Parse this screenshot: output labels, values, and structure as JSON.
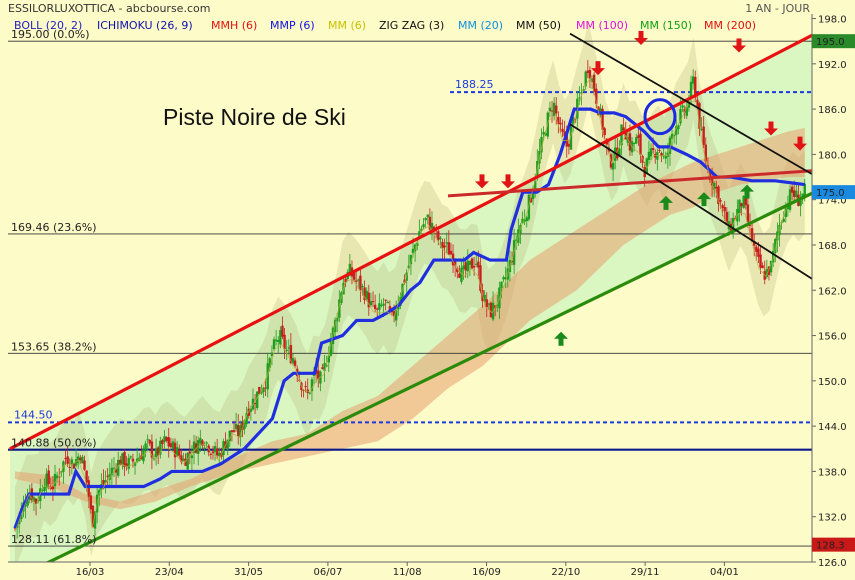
{
  "header": {
    "title": "ESSILORLUXOTTICA - abcbourse.com",
    "period": "1 AN - JOUR"
  },
  "colors": {
    "background": "#fdfbc8",
    "up_candle": "#1e9e1e",
    "down_candle": "#c81e1e",
    "channel_fill": "#d6f5c0",
    "cloud_fill": "#e8a070",
    "boll_fill": "#b4b478",
    "ichimoku_line": "#1f2fe0",
    "resistance": "#e81010",
    "support": "#2a8a0a"
  },
  "chart_data": {
    "type": "candlestick",
    "title": "Piste Noire de Ski",
    "indicators": [
      {
        "name": "BOLL (20, 2)",
        "color": "#2020c0"
      },
      {
        "name": "ICHIMOKU (26, 9)",
        "color": "#1010b0"
      },
      {
        "name": "MMH (6)",
        "color": "#e01010"
      },
      {
        "name": "MMP (6)",
        "color": "#1010e0"
      },
      {
        "name": "MM (6)",
        "color": "#c8c000"
      },
      {
        "name": "ZIG ZAG (3)",
        "color": "#111111"
      },
      {
        "name": "MM (20)",
        "color": "#1090e0"
      },
      {
        "name": "MM (50)",
        "color": "#111111"
      },
      {
        "name": "MM (100)",
        "color": "#e010e0"
      },
      {
        "name": "MM (150)",
        "color": "#10a010"
      },
      {
        "name": "MM (200)",
        "color": "#e01010"
      }
    ],
    "x_labels": [
      "16/03",
      "23/04",
      "31/05",
      "06/07",
      "11/08",
      "16/09",
      "22/10",
      "29/11",
      "04/01"
    ],
    "y_ticks": [
      "198.0",
      "192.0",
      "186.0",
      "180.0",
      "174.0",
      "168.0",
      "162.0",
      "156.0",
      "150.0",
      "144.0",
      "138.0",
      "132.0",
      "126.0"
    ],
    "ylim": [
      126,
      198.6
    ],
    "last_price": "175.0",
    "high_marker": "195.0",
    "low_marker": "128.3",
    "fib_levels": [
      {
        "label": "195.00  (0.0%)",
        "value": 195.0
      },
      {
        "label": "169.46  (23.6%)",
        "value": 169.46
      },
      {
        "label": "153.65  (38.2%)",
        "value": 153.65
      },
      {
        "label": "140.88  (50.0%)",
        "value": 140.88
      },
      {
        "label": "128.11  (61.8%)",
        "value": 128.11
      }
    ],
    "dashed_levels": [
      {
        "label": "188.25",
        "value": 188.25
      },
      {
        "label": "144.50",
        "value": 144.5
      }
    ],
    "close_path": [
      [
        0,
        130.5
      ],
      [
        6,
        133
      ],
      [
        12,
        135.5
      ],
      [
        18,
        134
      ],
      [
        25,
        137
      ],
      [
        32,
        136
      ],
      [
        38,
        138
      ],
      [
        44,
        140
      ],
      [
        50,
        139
      ],
      [
        56,
        140.5
      ],
      [
        62,
        136
      ],
      [
        66,
        131
      ],
      [
        70,
        135
      ],
      [
        76,
        136.5
      ],
      [
        82,
        138
      ],
      [
        90,
        139.5
      ],
      [
        98,
        139
      ],
      [
        106,
        140
      ],
      [
        113,
        141.5
      ],
      [
        120,
        140
      ],
      [
        128,
        142
      ],
      [
        136,
        141
      ],
      [
        144,
        139.5
      ],
      [
        152,
        141
      ],
      [
        160,
        142.5
      ],
      [
        168,
        141
      ],
      [
        174,
        140
      ],
      [
        180,
        142
      ],
      [
        186,
        143.5
      ],
      [
        192,
        143
      ],
      [
        198,
        146
      ],
      [
        206,
        148
      ],
      [
        214,
        150
      ],
      [
        220,
        154
      ],
      [
        226,
        156
      ],
      [
        232,
        154
      ],
      [
        238,
        153
      ],
      [
        244,
        150
      ],
      [
        250,
        148
      ],
      [
        256,
        151
      ],
      [
        262,
        150
      ],
      [
        268,
        154
      ],
      [
        274,
        158
      ],
      [
        280,
        163
      ],
      [
        286,
        164.5
      ],
      [
        292,
        163
      ],
      [
        298,
        162
      ],
      [
        304,
        160
      ],
      [
        310,
        159
      ],
      [
        316,
        160.5
      ],
      [
        322,
        158
      ],
      [
        328,
        161
      ],
      [
        334,
        164
      ],
      [
        340,
        167
      ],
      [
        346,
        170
      ],
      [
        352,
        171.5
      ],
      [
        358,
        170
      ],
      [
        364,
        168
      ],
      [
        370,
        167.5
      ],
      [
        376,
        166
      ],
      [
        382,
        164
      ],
      [
        388,
        165
      ],
      [
        394,
        166
      ],
      [
        400,
        161
      ],
      [
        406,
        159
      ],
      [
        412,
        160.5
      ],
      [
        418,
        163
      ],
      [
        424,
        166
      ],
      [
        430,
        170
      ],
      [
        436,
        172
      ],
      [
        442,
        175
      ],
      [
        448,
        180
      ],
      [
        454,
        184
      ],
      [
        460,
        187
      ],
      [
        466,
        183
      ],
      [
        472,
        181
      ],
      [
        478,
        185
      ],
      [
        484,
        188
      ],
      [
        490,
        192
      ],
      [
        496,
        188
      ],
      [
        502,
        184
      ],
      [
        508,
        179
      ],
      [
        514,
        180
      ],
      [
        520,
        184
      ],
      [
        526,
        181
      ],
      [
        532,
        182
      ],
      [
        538,
        178
      ],
      [
        544,
        180
      ],
      [
        550,
        181
      ],
      [
        556,
        179
      ],
      [
        562,
        183
      ],
      [
        568,
        185
      ],
      [
        574,
        186
      ],
      [
        580,
        190
      ],
      [
        586,
        183
      ],
      [
        592,
        178
      ],
      [
        598,
        176
      ],
      [
        604,
        173
      ],
      [
        610,
        170
      ],
      [
        616,
        172
      ],
      [
        622,
        174
      ],
      [
        628,
        170
      ],
      [
        634,
        166
      ],
      [
        640,
        164
      ],
      [
        646,
        165
      ],
      [
        652,
        170
      ],
      [
        658,
        173
      ],
      [
        664,
        175
      ],
      [
        670,
        174
      ],
      [
        675,
        175
      ]
    ],
    "ichimoku_kijun": [
      [
        0,
        130.5
      ],
      [
        6,
        133
      ],
      [
        12,
        135
      ],
      [
        46,
        135
      ],
      [
        52,
        138
      ],
      [
        60,
        136
      ],
      [
        110,
        136
      ],
      [
        124,
        137
      ],
      [
        134,
        138
      ],
      [
        160,
        138
      ],
      [
        176,
        139
      ],
      [
        196,
        141
      ],
      [
        208,
        143
      ],
      [
        220,
        145
      ],
      [
        230,
        150
      ],
      [
        238,
        151
      ],
      [
        256,
        151
      ],
      [
        262,
        155
      ],
      [
        280,
        156
      ],
      [
        292,
        158
      ],
      [
        306,
        158
      ],
      [
        318,
        159
      ],
      [
        328,
        160
      ],
      [
        338,
        162
      ],
      [
        346,
        163
      ],
      [
        358,
        166
      ],
      [
        384,
        166
      ],
      [
        392,
        167
      ],
      [
        406,
        166
      ],
      [
        420,
        166
      ],
      [
        424,
        170
      ],
      [
        434,
        175
      ],
      [
        446,
        175
      ],
      [
        456,
        176
      ],
      [
        466,
        180
      ],
      [
        472,
        183
      ],
      [
        478,
        186
      ],
      [
        484,
        186
      ],
      [
        492,
        186
      ],
      [
        500,
        185.5
      ],
      [
        512,
        185.5
      ],
      [
        522,
        185
      ],
      [
        538,
        183
      ],
      [
        550,
        181
      ],
      [
        560,
        181
      ],
      [
        574,
        180
      ],
      [
        586,
        179
      ],
      [
        600,
        177
      ],
      [
        612,
        177
      ],
      [
        630,
        176.5
      ],
      [
        650,
        176.5
      ],
      [
        675,
        176
      ]
    ],
    "cloud_upper": [
      [
        0,
        138
      ],
      [
        30,
        137.5
      ],
      [
        60,
        135
      ],
      [
        90,
        134
      ],
      [
        120,
        135.5
      ],
      [
        150,
        137
      ],
      [
        190,
        140
      ],
      [
        220,
        142
      ],
      [
        250,
        143
      ],
      [
        280,
        146
      ],
      [
        310,
        148
      ],
      [
        340,
        152
      ],
      [
        370,
        156
      ],
      [
        400,
        160
      ],
      [
        420,
        163
      ],
      [
        440,
        166
      ],
      [
        460,
        168
      ],
      [
        480,
        170
      ],
      [
        500,
        172
      ],
      [
        520,
        174
      ],
      [
        540,
        176
      ],
      [
        560,
        177.5
      ],
      [
        580,
        179
      ],
      [
        600,
        180
      ],
      [
        620,
        181
      ],
      [
        640,
        182
      ],
      [
        660,
        183
      ],
      [
        675,
        183.5
      ]
    ],
    "cloud_lower": [
      [
        0,
        137
      ],
      [
        30,
        136
      ],
      [
        60,
        134
      ],
      [
        90,
        133
      ],
      [
        120,
        134
      ],
      [
        150,
        136
      ],
      [
        190,
        138
      ],
      [
        220,
        139
      ],
      [
        250,
        140
      ],
      [
        280,
        141
      ],
      [
        310,
        142
      ],
      [
        340,
        145
      ],
      [
        370,
        149
      ],
      [
        400,
        152
      ],
      [
        420,
        155
      ],
      [
        440,
        158
      ],
      [
        460,
        160
      ],
      [
        480,
        162
      ],
      [
        500,
        165
      ],
      [
        520,
        168
      ],
      [
        540,
        170
      ],
      [
        560,
        172
      ],
      [
        580,
        173
      ],
      [
        600,
        175
      ],
      [
        620,
        176
      ],
      [
        640,
        176.5
      ],
      [
        660,
        177
      ],
      [
        675,
        177
      ]
    ],
    "lines": {
      "resistance": [
        [
          0,
          141
        ],
        [
          820,
          197
        ]
      ],
      "support": [
        [
          0,
          123.5
        ],
        [
          820,
          176
        ]
      ],
      "horizontal_resistance": [
        [
          438,
          174.5
        ],
        [
          820,
          178
        ]
      ],
      "channel_upper": [
        [
          560,
          196
        ],
        [
          820,
          176
        ]
      ],
      "channel_lower": [
        [
          560,
          184
        ],
        [
          820,
          162
        ]
      ],
      "mm6_overlay": [
        [
          0,
          137
        ],
        [
          675,
          176
        ]
      ]
    },
    "arrows_down": [
      [
        472,
        175.5
      ],
      [
        498,
        175.5
      ],
      [
        588,
        190.5
      ],
      [
        631,
        194.5
      ],
      [
        729,
        193.5
      ],
      [
        761,
        182.5
      ],
      [
        790,
        180.5
      ]
    ],
    "arrows_up": [
      [
        551,
        156.5
      ],
      [
        656,
        174.5
      ],
      [
        694,
        175
      ],
      [
        737,
        176
      ]
    ],
    "circle_marker": [
      650,
      185
    ]
  }
}
